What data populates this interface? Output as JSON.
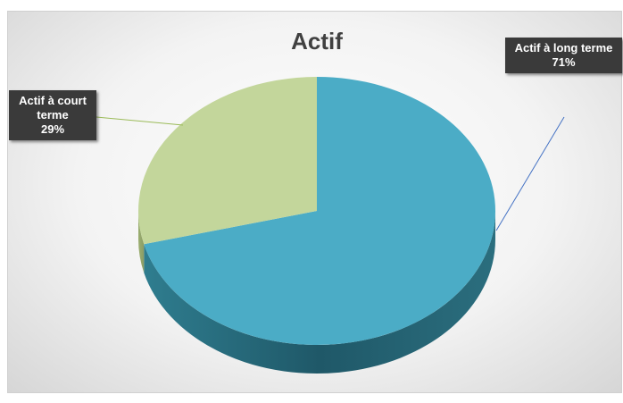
{
  "chart_data": {
    "type": "pie",
    "title": "Actif",
    "categories": [
      "Actif à long terme",
      "Actif à court terme"
    ],
    "values": [
      71,
      29
    ],
    "value_labels": [
      "71%",
      "29%"
    ],
    "colors": [
      "#4bacc6",
      "#c3d69b"
    ],
    "three_d": true
  }
}
